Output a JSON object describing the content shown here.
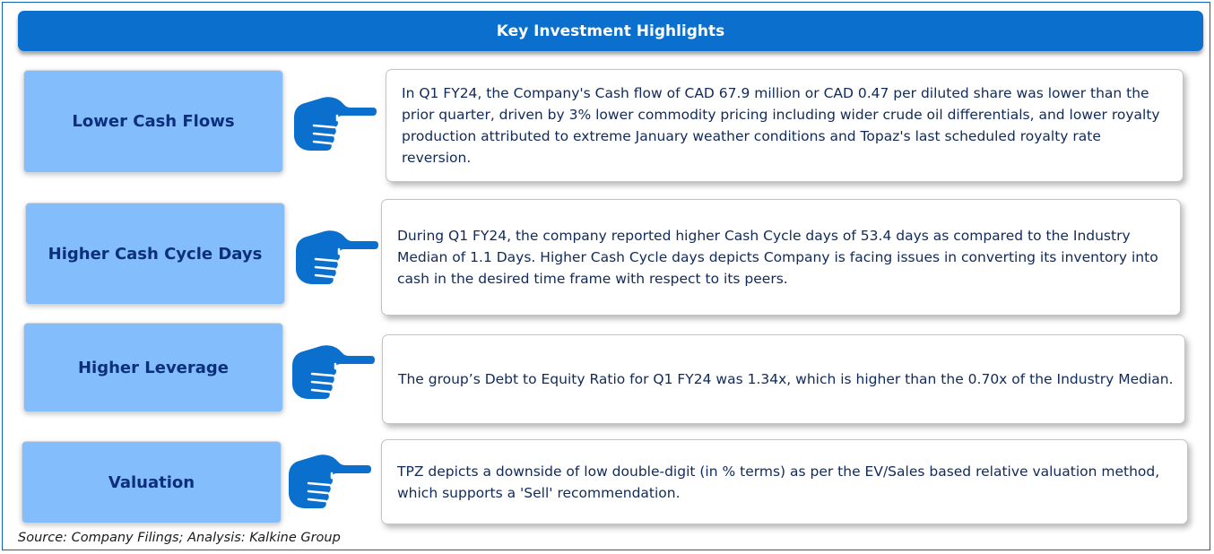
{
  "title": "Key Investment Highlights",
  "colors": {
    "header_bg": "#0a6fcd",
    "label_bg": "#84bdfb",
    "label_text": "#0b2f7c",
    "hand": "#0a6fcd",
    "frame": "#0b63b8"
  },
  "rows": [
    {
      "label": "Lower Cash Flows",
      "icon": "pointing-hand-icon",
      "text": "In Q1 FY24, the  Company's Cash flow of CAD 67.9 million or CAD 0.47 per diluted share  was lower than the prior quarter, driven by 3% lower commodity pricing including wider crude oil differentials, and lower royalty production attributed to extreme January weather conditions and Topaz's last scheduled royalty rate reversion."
    },
    {
      "label": "Higher Cash Cycle Days",
      "icon": "pointing-hand-icon",
      "text": "During Q1 FY24, the company reported   higher Cash Cycle days of 53.4 days as compared to the Industry Median of 1.1 Days.  Higher Cash Cycle days depicts Company is facing issues in converting its inventory into cash in the desired time frame with respect to its peers."
    },
    {
      "label": "Higher Leverage",
      "icon": "pointing-hand-icon",
      "text": "The group’s  Debt to Equity   Ratio for Q1 FY24 was  1.34x, which is higher than the 0.70x of the Industry Median."
    },
    {
      "label": "Valuation",
      "icon": "pointing-hand-icon",
      "text": "TPZ  depicts a downside of low double-digit (in % terms) as per the EV/Sales based relative valuation method, which supports a 'Sell' recommendation."
    }
  ],
  "source": "Source: Company Filings; Analysis: Kalkine Group"
}
